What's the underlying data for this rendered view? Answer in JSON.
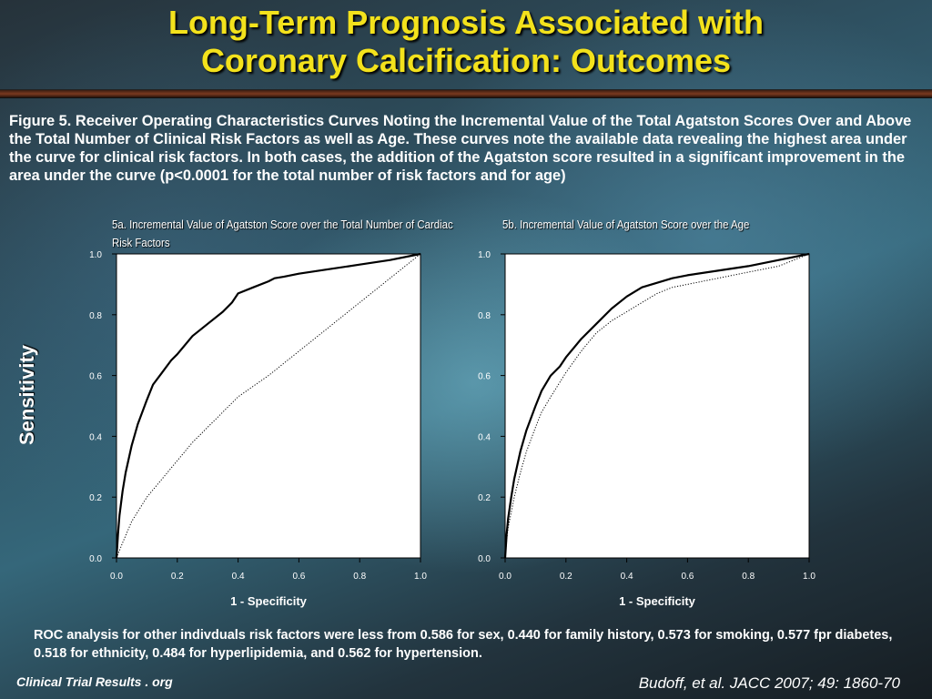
{
  "slide": {
    "title_line1": "Long-Term Prognosis Associated with",
    "title_line2": "Coronary Calcification: Outcomes",
    "caption": "Figure 5.  Receiver Operating Characteristics Curves Noting the Incremental Value of the Total Agatston Scores Over and Above the Total Number of Clinical Risk Factors as well as Age. These curves note the available data revealing the highest area under the curve for clinical risk factors. In both cases, the addition of the Agatston score resulted in a significant improvement in the area under the curve (p<0.0001 for the total number of risk factors and for age)",
    "ylabel": "Sensitivity",
    "footnote": "ROC analysis for other indivduals risk factors were less from 0.586 for sex, 0.440 for family history, 0.573 for smoking, 0.577 fpr diabetes, 0.518 for ethnicity, 0.484 for hyperlipidemia, and 0.562 for hypertension.",
    "brand": "Clinical Trial Results . org",
    "citation": "Budoff, et al. JACC 2007; 49: 1860-70",
    "colors": {
      "title": "#f3e21c",
      "text": "#ffffff",
      "plot_bg": "#ffffff",
      "curve": "#000000"
    }
  },
  "chart_data": [
    {
      "type": "line",
      "subtitle": "5a. Incremental Value of Agatston Score over the Total Number of Cardiac Risk Factors",
      "xlabel": "1 - Specificity",
      "xlim": [
        0,
        1
      ],
      "ylim": [
        0,
        1
      ],
      "xticks": [
        "0.0",
        "0.2",
        "0.4",
        "0.6",
        "0.8",
        "1.0"
      ],
      "yticks": [
        "0.0",
        "0.2",
        "0.4",
        "0.6",
        "0.8",
        "1.0"
      ],
      "series": [
        {
          "style": "solid",
          "x": [
            0,
            0.005,
            0.01,
            0.02,
            0.03,
            0.05,
            0.07,
            0.1,
            0.12,
            0.15,
            0.18,
            0.2,
            0.25,
            0.3,
            0.35,
            0.38,
            0.4,
            0.45,
            0.5,
            0.52,
            0.55,
            0.6,
            0.7,
            0.8,
            0.9,
            1.0
          ],
          "y": [
            0,
            0.08,
            0.14,
            0.22,
            0.28,
            0.37,
            0.44,
            0.52,
            0.57,
            0.61,
            0.65,
            0.67,
            0.73,
            0.77,
            0.81,
            0.84,
            0.87,
            0.89,
            0.91,
            0.92,
            0.925,
            0.935,
            0.95,
            0.965,
            0.98,
            1.0
          ]
        },
        {
          "style": "dotted",
          "x": [
            0,
            0.02,
            0.05,
            0.1,
            0.15,
            0.2,
            0.25,
            0.3,
            0.35,
            0.4,
            0.5,
            0.6,
            0.7,
            0.8,
            0.9,
            1.0
          ],
          "y": [
            0,
            0.05,
            0.12,
            0.2,
            0.26,
            0.32,
            0.38,
            0.43,
            0.48,
            0.53,
            0.6,
            0.68,
            0.76,
            0.84,
            0.92,
            1.0
          ]
        }
      ]
    },
    {
      "type": "line",
      "subtitle": "5b. Incremental Value of Agatston Score over the Age",
      "xlabel": "1 - Specificity",
      "xlim": [
        0,
        1
      ],
      "ylim": [
        0,
        1
      ],
      "xticks": [
        "0.0",
        "0.2",
        "0.4",
        "0.6",
        "0.8",
        "1.0"
      ],
      "yticks": [
        "0.0",
        "0.2",
        "0.4",
        "0.6",
        "0.8",
        "1.0"
      ],
      "series": [
        {
          "style": "solid",
          "x": [
            0,
            0.005,
            0.01,
            0.02,
            0.03,
            0.05,
            0.07,
            0.1,
            0.12,
            0.15,
            0.18,
            0.2,
            0.25,
            0.3,
            0.35,
            0.4,
            0.45,
            0.5,
            0.55,
            0.6,
            0.7,
            0.8,
            0.9,
            1.0
          ],
          "y": [
            0,
            0.08,
            0.13,
            0.2,
            0.26,
            0.35,
            0.42,
            0.5,
            0.55,
            0.6,
            0.63,
            0.66,
            0.72,
            0.77,
            0.82,
            0.86,
            0.89,
            0.905,
            0.92,
            0.93,
            0.945,
            0.96,
            0.98,
            1.0
          ]
        },
        {
          "style": "dotted",
          "x": [
            0,
            0.005,
            0.01,
            0.02,
            0.03,
            0.05,
            0.07,
            0.1,
            0.12,
            0.15,
            0.2,
            0.25,
            0.3,
            0.35,
            0.4,
            0.45,
            0.5,
            0.55,
            0.6,
            0.7,
            0.8,
            0.9,
            1.0
          ],
          "y": [
            0,
            0.06,
            0.1,
            0.15,
            0.2,
            0.28,
            0.35,
            0.43,
            0.48,
            0.53,
            0.61,
            0.68,
            0.74,
            0.78,
            0.81,
            0.84,
            0.87,
            0.89,
            0.9,
            0.92,
            0.94,
            0.96,
            1.0
          ]
        }
      ]
    }
  ]
}
